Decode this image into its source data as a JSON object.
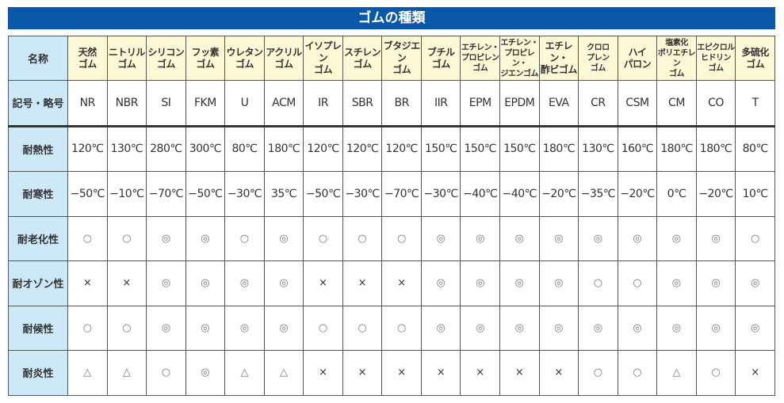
{
  "title": "ゴムの種類",
  "rows": {
    "name_label": "名称",
    "code_label": "記号・略号",
    "heat_label": "耐熱性",
    "cold_label": "耐寒性",
    "aging_label": "耐老化性",
    "ozone_label": "耐オゾン性",
    "weather_label": "耐候性",
    "flame_label": "耐炎性"
  },
  "rubbers": [
    {
      "name": "天然\nゴム",
      "code": "NR",
      "heat": "120℃",
      "cold": "−50℃",
      "aging": "○",
      "ozone": "×",
      "weather": "○",
      "flame": "△"
    },
    {
      "name": "ニトリル\nゴム",
      "code": "NBR",
      "heat": "130℃",
      "cold": "−10℃",
      "aging": "○",
      "ozone": "×",
      "weather": "○",
      "flame": "△"
    },
    {
      "name": "シリコン\nゴム",
      "code": "SI",
      "heat": "280℃",
      "cold": "−70℃",
      "aging": "◎",
      "ozone": "◎",
      "weather": "◎",
      "flame": "○"
    },
    {
      "name": "フッ素\nゴム",
      "code": "FKM",
      "heat": "300℃",
      "cold": "−50℃",
      "aging": "◎",
      "ozone": "◎",
      "weather": "◎",
      "flame": "◎"
    },
    {
      "name": "ウレタン\nゴム",
      "code": "U",
      "heat": "80℃",
      "cold": "−30℃",
      "aging": "○",
      "ozone": "◎",
      "weather": "◎",
      "flame": "△"
    },
    {
      "name": "アクリル\nゴム",
      "code": "ACM",
      "heat": "180℃",
      "cold": "35℃",
      "aging": "◎",
      "ozone": "◎",
      "weather": "◎",
      "flame": "△"
    },
    {
      "name": "イソプレン\nゴム",
      "code": "IR",
      "heat": "120℃",
      "cold": "−50℃",
      "aging": "○",
      "ozone": "×",
      "weather": "○",
      "flame": "×"
    },
    {
      "name": "スチレン\nゴム",
      "code": "SBR",
      "heat": "120℃",
      "cold": "−30℃",
      "aging": "○",
      "ozone": "×",
      "weather": "○",
      "flame": "×"
    },
    {
      "name": "ブタジエン\nゴム",
      "code": "BR",
      "heat": "120℃",
      "cold": "−70℃",
      "aging": "○",
      "ozone": "×",
      "weather": "○",
      "flame": "×"
    },
    {
      "name": "ブチル\nゴム",
      "code": "IIR",
      "heat": "150℃",
      "cold": "−30℃",
      "aging": "◎",
      "ozone": "◎",
      "weather": "◎",
      "flame": "×"
    },
    {
      "name": "エチレン・\nプロピレン\nゴム",
      "code": "EPM",
      "heat": "150℃",
      "cold": "−40℃",
      "aging": "◎",
      "ozone": "◎",
      "weather": "◎",
      "flame": "×"
    },
    {
      "name": "エチレン・\nプロピレン・\nジエンゴム",
      "code": "EPDM",
      "heat": "150℃",
      "cold": "−40℃",
      "aging": "◎",
      "ozone": "◎",
      "weather": "◎",
      "flame": "×"
    },
    {
      "name": "エチレン・\n酢ビゴム",
      "code": "EVA",
      "heat": "180℃",
      "cold": "−20℃",
      "aging": "◎",
      "ozone": "◎",
      "weather": "◎",
      "flame": "×"
    },
    {
      "name": "クロロ\nプレン\nゴム",
      "code": "CR",
      "heat": "130℃",
      "cold": "−35℃",
      "aging": "◎",
      "ozone": "○",
      "weather": "◎",
      "flame": "○"
    },
    {
      "name": "ハイ\nパロン",
      "code": "CSM",
      "heat": "160℃",
      "cold": "−20℃",
      "aging": "◎",
      "ozone": "○",
      "weather": "◎",
      "flame": "○"
    },
    {
      "name": "塩素化\nポリエチレン\nゴム",
      "code": "CM",
      "heat": "180℃",
      "cold": "0℃",
      "aging": "◎",
      "ozone": "◎",
      "weather": "◎",
      "flame": "△"
    },
    {
      "name": "エピクロル\nヒドリン\nゴム",
      "code": "CO",
      "heat": "180℃",
      "cold": "−20℃",
      "aging": "◎",
      "ozone": "◎",
      "weather": "◎",
      "flame": "○"
    },
    {
      "name": "多硫化\nゴム",
      "code": "T",
      "heat": "80℃",
      "cold": "10℃",
      "aging": "○",
      "ozone": "◎",
      "weather": "◎",
      "flame": "×"
    }
  ]
}
